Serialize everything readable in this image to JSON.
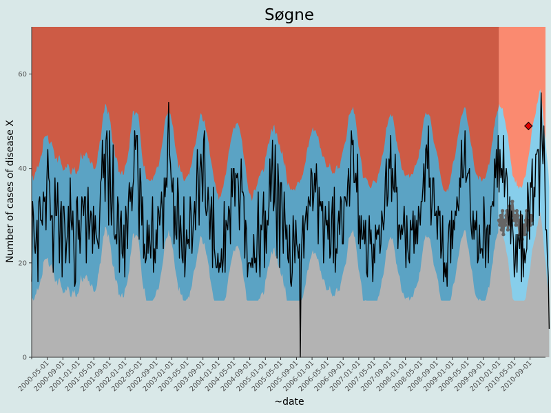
{
  "chart_data": {
    "type": "line",
    "title": "Søgne",
    "xlabel": "~date",
    "ylabel": "Number of cases of disease X",
    "x_start": "2000-01-01",
    "x_end": "2010-12-31",
    "forecast_start": "2010-01-01",
    "ylim": [
      0,
      70
    ],
    "y_ticks": [
      0,
      20,
      40,
      60
    ],
    "x_ticks": [
      "2000-05-01",
      "2000-09-01",
      "2001-01-01",
      "2001-05-01",
      "2001-09-01",
      "2002-01-01",
      "2002-05-01",
      "2002-09-01",
      "2003-01-01",
      "2003-05-01",
      "2003-09-01",
      "2004-01-01",
      "2004-05-01",
      "2004-09-01",
      "2005-01-01",
      "2005-05-01",
      "2005-09-01",
      "2006-01-01",
      "2006-05-01",
      "2006-09-01",
      "2007-01-01",
      "2007-05-01",
      "2007-09-01",
      "2008-01-01",
      "2008-05-01",
      "2008-09-01",
      "2009-01-01",
      "2009-05-01",
      "2009-09-01",
      "2010-01-01",
      "2010-05-01",
      "2010-09-01"
    ],
    "grid": false,
    "colors": {
      "background": "#d9e8e8",
      "alert_historic": "#cd5b45",
      "alert_forecast": "#fa8a70",
      "band_historic": "#5ba3c4",
      "band_forecast": "#87ceeb",
      "baseline": "#b3b3b3",
      "observed_line": "#000000",
      "forecast_line": "#666666",
      "alert_marker": "#e00000"
    },
    "series": [
      {
        "name": "observed",
        "values": []
      },
      {
        "name": "forecast",
        "values": []
      }
    ],
    "weekly_cases": [
      16,
      33,
      30,
      24,
      22,
      25,
      29,
      16,
      33,
      34,
      29,
      29,
      28,
      35,
      33,
      34,
      27,
      38,
      44,
      38,
      37,
      29,
      30,
      30,
      18,
      28,
      38,
      30,
      30,
      37,
      29,
      20,
      30,
      33,
      17,
      32,
      32,
      28,
      20,
      24,
      26,
      32,
      20,
      38,
      29,
      27,
      31,
      24,
      15,
      16,
      33,
      34,
      25,
      29,
      22,
      27,
      34,
      33,
      30,
      34,
      34,
      20,
      30,
      36,
      25,
      28,
      31,
      30,
      22,
      32,
      24,
      30,
      26,
      25,
      24,
      23,
      30,
      37,
      38,
      46,
      38,
      43,
      33,
      46,
      48,
      42,
      28,
      48,
      36,
      28,
      33,
      45,
      26,
      25,
      26,
      24,
      34,
      32,
      18,
      29,
      31,
      22,
      21,
      28,
      17,
      32,
      29,
      23,
      33,
      37,
      33,
      36,
      31,
      36,
      38,
      48,
      44,
      47,
      47,
      35,
      25,
      40,
      37,
      28,
      34,
      21,
      24,
      20,
      21,
      29,
      22,
      28,
      24,
      21,
      28,
      34,
      18,
      23,
      20,
      27,
      23,
      32,
      31,
      28,
      31,
      35,
      31,
      23,
      38,
      34,
      38,
      36,
      46,
      54,
      43,
      41,
      37,
      35,
      38,
      24,
      32,
      26,
      25,
      38,
      34,
      21,
      30,
      26,
      21,
      20,
      34,
      17,
      22,
      27,
      24,
      25,
      23,
      34,
      31,
      22,
      26,
      30,
      33,
      27,
      35,
      44,
      38,
      28,
      40,
      43,
      39,
      33,
      46,
      48,
      32,
      30,
      31,
      36,
      32,
      25,
      31,
      34,
      19,
      36,
      23,
      21,
      19,
      19,
      22,
      18,
      20,
      19,
      23,
      18,
      21,
      33,
      18,
      29,
      28,
      27,
      32,
      31,
      24,
      40,
      34,
      40,
      40,
      32,
      39,
      38,
      39,
      36,
      27,
      35,
      42,
      35,
      35,
      34,
      21,
      29,
      27,
      17,
      20,
      20,
      20,
      19,
      21,
      19,
      26,
      20,
      21,
      18,
      27,
      35,
      22,
      17,
      28,
      27,
      30,
      35,
      19,
      31,
      22,
      29,
      28,
      32,
      42,
      33,
      39,
      46,
      31,
      33,
      45,
      32,
      21,
      41,
      36,
      19,
      37,
      37,
      29,
      22,
      35,
      29,
      25,
      28,
      21,
      20,
      28,
      16,
      15,
      18,
      30,
      25,
      20,
      29,
      24,
      23,
      21,
      24,
      0,
      20,
      26,
      30,
      21,
      28,
      30,
      32,
      27,
      34,
      33,
      32,
      40,
      39,
      31,
      34,
      39,
      35,
      41,
      35,
      24,
      36,
      32,
      33,
      31,
      33,
      20,
      26,
      32,
      28,
      29,
      25,
      33,
      21,
      22,
      30,
      34,
      20,
      36,
      18,
      23,
      22,
      28,
      31,
      26,
      34,
      33,
      24,
      24,
      34,
      34,
      33,
      32,
      37,
      40,
      32,
      39,
      48,
      45,
      46,
      37,
      37,
      39,
      35,
      43,
      24,
      30,
      23,
      30,
      25,
      25,
      29,
      24,
      29,
      18,
      17,
      25,
      30,
      24,
      27,
      22,
      16,
      24,
      20,
      28,
      25,
      27,
      26,
      28,
      22,
      24,
      31,
      29,
      27,
      30,
      38,
      42,
      32,
      34,
      42,
      40,
      47,
      33,
      40,
      36,
      35,
      43,
      35,
      36,
      23,
      28,
      28,
      25,
      28,
      26,
      28,
      32,
      26,
      19,
      30,
      23,
      21,
      20,
      29,
      27,
      27,
      31,
      22,
      30,
      24,
      29,
      24,
      32,
      30,
      28,
      33,
      33,
      36,
      41,
      33,
      44,
      45,
      40,
      49,
      36,
      38,
      28,
      32,
      38,
      38,
      30,
      30,
      31,
      25,
      32,
      30,
      31,
      21,
      23,
      30,
      16,
      20,
      17,
      20,
      15,
      24,
      28,
      29,
      20,
      31,
      23,
      29,
      27,
      31,
      30,
      34,
      32,
      31,
      38,
      36,
      46,
      38,
      38,
      41,
      48,
      37,
      38,
      39,
      39,
      40,
      30,
      27,
      25,
      31,
      25,
      29,
      27,
      31,
      20,
      21,
      28,
      22,
      23,
      23,
      21,
      34,
      28,
      19,
      27,
      28,
      20,
      28,
      26,
      32,
      32,
      33,
      32,
      42,
      38,
      44,
      36,
      47,
      35,
      44,
      38,
      40,
      37,
      47,
      34,
      38,
      40,
      38,
      30,
      28,
      34,
      24,
      31,
      28,
      25,
      17,
      20,
      26,
      18,
      26,
      25,
      23,
      31,
      16,
      30,
      17,
      23,
      20,
      22,
      23,
      37,
      33,
      25,
      37,
      36,
      42,
      28,
      36,
      34,
      43,
      43,
      44,
      44,
      30,
      46,
      56,
      46,
      41,
      49,
      40,
      27,
      27,
      21,
      17,
      6
    ],
    "forecast_cases": [
      29,
      28,
      30,
      27,
      31,
      26,
      29,
      28,
      30,
      31,
      27,
      29,
      32,
      28,
      30,
      33,
      31,
      29,
      30,
      28,
      31,
      30,
      28,
      26,
      29,
      30,
      25,
      27,
      28,
      26,
      29,
      31,
      28,
      27,
      29,
      28,
      30,
      29
    ],
    "alerts": [
      {
        "date": "2010-08-20",
        "cases": 49
      }
    ]
  }
}
